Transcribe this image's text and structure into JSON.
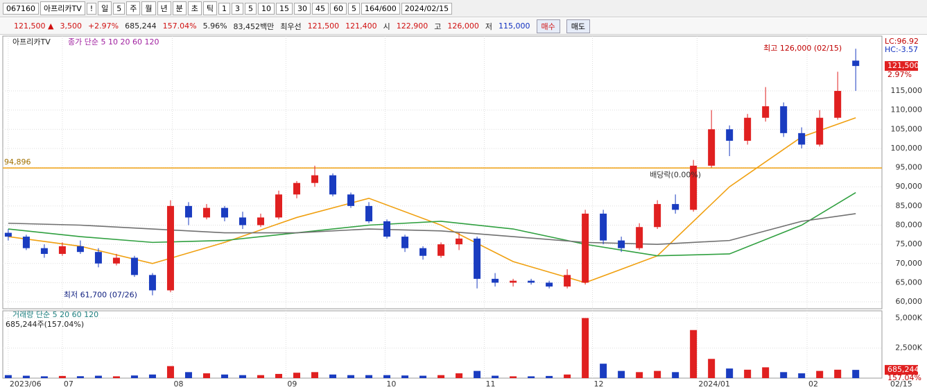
{
  "toolbar": [
    "067160",
    "아프리카TV",
    "!",
    "일",
    "5",
    "주",
    "월",
    "년",
    "분",
    "초",
    "틱",
    "1",
    "3",
    "5",
    "10",
    "15",
    "30",
    "45",
    "60",
    "5",
    "164/600",
    "2024/02/15"
  ],
  "info": [
    {
      "text": "121,500 ▲",
      "color": "#d01010"
    },
    {
      "text": "3,500",
      "color": "#d01010"
    },
    {
      "text": "+2.97%",
      "color": "#d01010"
    },
    {
      "text": "685,244",
      "color": "#222222"
    },
    {
      "text": "157.04%",
      "color": "#d01010"
    },
    {
      "text": "5.96%",
      "color": "#222222"
    },
    {
      "text": "83,452백만",
      "color": "#222222"
    },
    {
      "text": "최우선",
      "color": "#222222"
    },
    {
      "text": "121,500",
      "color": "#d01010"
    },
    {
      "text": "121,400",
      "color": "#d01010"
    },
    {
      "text": "시",
      "color": "#222222"
    },
    {
      "text": "122,900",
      "color": "#d01010"
    },
    {
      "text": "고",
      "color": "#222222"
    },
    {
      "text": "126,000",
      "color": "#d01010"
    },
    {
      "text": "저",
      "color": "#222222"
    },
    {
      "text": "115,000",
      "color": "#1030c0"
    }
  ],
  "buttons": [
    "매수",
    "매도"
  ],
  "chart_data": {
    "type": "candlestick",
    "title": "아프리카TV",
    "legend": "종가 단순 5 10 20 60 120",
    "up_color": "#e02020",
    "down_color": "#1a3cc0",
    "candles": [
      [
        78000,
        79000,
        76000,
        77000
      ],
      [
        77000,
        77500,
        73500,
        74000
      ],
      [
        74000,
        75000,
        71500,
        72500
      ],
      [
        72500,
        75500,
        72000,
        74500
      ],
      [
        74500,
        76000,
        72500,
        73000
      ],
      [
        73000,
        74000,
        69000,
        70000
      ],
      [
        70000,
        72500,
        69500,
        71500
      ],
      [
        71500,
        72000,
        66500,
        67000
      ],
      [
        67000,
        67500,
        61700,
        63000
      ],
      [
        63000,
        86500,
        62500,
        85000
      ],
      [
        85000,
        86000,
        80000,
        82000
      ],
      [
        82000,
        85500,
        81500,
        84500
      ],
      [
        84500,
        85000,
        81000,
        82000
      ],
      [
        82000,
        83500,
        79000,
        80000
      ],
      [
        80000,
        83000,
        79500,
        82000
      ],
      [
        82000,
        89000,
        81500,
        88000
      ],
      [
        88000,
        91500,
        87000,
        91000
      ],
      [
        91000,
        95500,
        90000,
        93000
      ],
      [
        93000,
        93500,
        87500,
        88000
      ],
      [
        88000,
        88500,
        84500,
        85000
      ],
      [
        85000,
        86000,
        80500,
        81000
      ],
      [
        81000,
        81500,
        76500,
        77000
      ],
      [
        77000,
        77500,
        73000,
        74000
      ],
      [
        74000,
        74500,
        71000,
        72000
      ],
      [
        72000,
        75500,
        71500,
        75000
      ],
      [
        75000,
        78000,
        73500,
        76500
      ],
      [
        76500,
        77000,
        63500,
        66000
      ],
      [
        66000,
        67500,
        64000,
        65000
      ],
      [
        65000,
        66000,
        64000,
        65500
      ],
      [
        65500,
        66000,
        64500,
        65000
      ],
      [
        65000,
        65500,
        63500,
        64000
      ],
      [
        64000,
        68500,
        63500,
        67000
      ],
      [
        65000,
        84000,
        64500,
        83000
      ],
      [
        83000,
        84000,
        75000,
        76000
      ],
      [
        76000,
        77000,
        73000,
        74000
      ],
      [
        74000,
        80500,
        73500,
        79500
      ],
      [
        79500,
        86500,
        79000,
        85500
      ],
      [
        85500,
        88000,
        83000,
        84000
      ],
      [
        84000,
        97000,
        83500,
        95500
      ],
      [
        95500,
        110000,
        95000,
        105000
      ],
      [
        105000,
        106000,
        98000,
        102000
      ],
      [
        102000,
        109000,
        101000,
        108000
      ],
      [
        108000,
        116000,
        107000,
        111000
      ],
      [
        111000,
        112000,
        103000,
        104000
      ],
      [
        104000,
        105500,
        100000,
        101000
      ],
      [
        101000,
        110000,
        100500,
        108000
      ],
      [
        108000,
        120000,
        107500,
        115000
      ],
      [
        122900,
        126000,
        115000,
        121500
      ]
    ],
    "moving_averages": [
      {
        "color": "#f0a010",
        "x": [
          0,
          4,
          8,
          12,
          16,
          20,
          24,
          28,
          32,
          36,
          40,
          44,
          47
        ],
        "values": [
          77000,
          74500,
          70000,
          75500,
          82000,
          87000,
          80000,
          70500,
          65000,
          72000,
          90000,
          103000,
          108000
        ]
      },
      {
        "color": "#30a040",
        "x": [
          0,
          4,
          8,
          12,
          16,
          20,
          24,
          28,
          32,
          36,
          40,
          44,
          47
        ],
        "values": [
          79000,
          77000,
          75500,
          76000,
          78000,
          80000,
          81000,
          79000,
          75000,
          72000,
          72500,
          80000,
          88500
        ]
      },
      {
        "color": "#707070",
        "x": [
          0,
          4,
          8,
          12,
          16,
          20,
          24,
          28,
          32,
          36,
          40,
          44,
          47
        ],
        "values": [
          80500,
          80000,
          79000,
          78000,
          78000,
          79000,
          78500,
          77000,
          75500,
          75000,
          76000,
          81000,
          83000
        ]
      }
    ],
    "ylim": [
      58200,
      129300
    ],
    "yticks": [
      {
        "value": 60000,
        "label": "60,000"
      },
      {
        "value": 65000,
        "label": "65,000"
      },
      {
        "value": 70000,
        "label": "70,000"
      },
      {
        "value": 75000,
        "label": "75,000"
      },
      {
        "value": 80000,
        "label": "80,000"
      },
      {
        "value": 85000,
        "label": "85,000"
      },
      {
        "value": 90000,
        "label": "90,000"
      },
      {
        "value": 95000,
        "label": "95,000"
      },
      {
        "value": 100000,
        "label": "100,000"
      },
      {
        "value": 105000,
        "label": "105,000"
      },
      {
        "value": 110000,
        "label": "110,000"
      },
      {
        "value": 115000,
        "label": "115,000"
      }
    ],
    "xlim": [
      -0.15,
      47.3
    ],
    "xticks": [
      {
        "value": 0,
        "label": "2023/06"
      },
      {
        "value": 3,
        "label": "07"
      },
      {
        "value": 9.1,
        "label": "08"
      },
      {
        "value": 15.4,
        "label": "09"
      },
      {
        "value": 20.9,
        "label": "10"
      },
      {
        "value": 26.4,
        "label": "11"
      },
      {
        "value": 32.4,
        "label": "12"
      },
      {
        "value": 38.2,
        "label": "2024/01"
      },
      {
        "value": 44.3,
        "label": "02"
      }
    ],
    "last_date": "02/15",
    "reference_line": {
      "value": 94896,
      "label": "94,896",
      "color": "#f0a010"
    },
    "high_note": "최고 126,000 (02/15)",
    "low_note": "최저 61,700 (07/26)",
    "dividend_note": "배당락(0.00%)",
    "right_labels": [
      "LC:96.92",
      "HC:-3.57"
    ],
    "last_price": {
      "value": 121500,
      "label": "121,500",
      "change": "2.97%"
    },
    "volume": {
      "legend": "거래량 단순 5 20 60 120",
      "note": "685,244주(157.04%)",
      "values": [
        250000,
        200000,
        150000,
        180000,
        160000,
        200000,
        150000,
        220000,
        300000,
        1000000,
        500000,
        400000,
        300000,
        250000,
        250000,
        350000,
        450000,
        500000,
        300000,
        250000,
        250000,
        250000,
        220000,
        200000,
        250000,
        400000,
        600000,
        200000,
        150000,
        150000,
        180000,
        300000,
        5000000,
        1200000,
        600000,
        500000,
        600000,
        500000,
        4000000,
        1600000,
        800000,
        700000,
        900000,
        500000,
        400000,
        600000,
        700000,
        685244
      ],
      "ylim": [
        0,
        5600000
      ],
      "yticks": [
        {
          "value": 2500000,
          "label": "2,500K"
        },
        {
          "value": 5000000,
          "label": "5,000K"
        }
      ],
      "last": {
        "value": 685244,
        "label": "685,244",
        "change": "157.04%"
      }
    }
  }
}
